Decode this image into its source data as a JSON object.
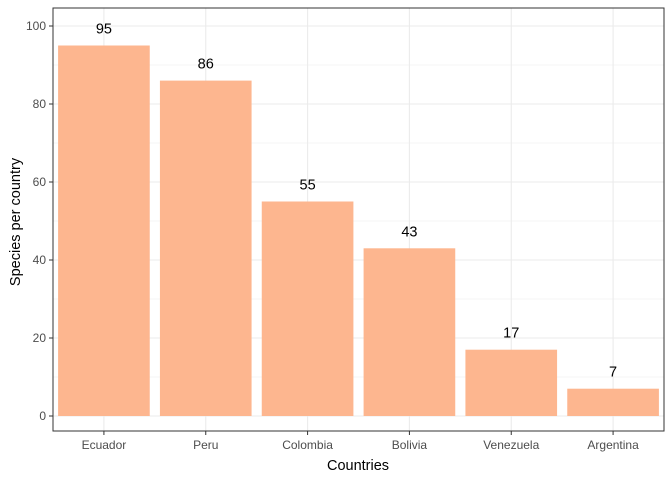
{
  "chart_data": {
    "type": "bar",
    "categories": [
      "Ecuador",
      "Peru",
      "Colombia",
      "Bolivia",
      "Venezuela",
      "Argentina"
    ],
    "values": [
      95,
      86,
      55,
      43,
      17,
      7
    ],
    "data_labels": [
      "95",
      "86",
      "55",
      "43",
      "17",
      "7"
    ],
    "xlabel": "Countries",
    "ylabel": "Species per country",
    "ylim": [
      0,
      105
    ],
    "yticks": [
      0,
      20,
      40,
      60,
      80,
      100
    ],
    "ytick_labels": [
      "0",
      "20",
      "40",
      "60",
      "80",
      "100"
    ],
    "grid": true,
    "legend": "none",
    "bar_color": "#FDB68F",
    "grid_color": "#EBEBEB",
    "panel_border_color": "#333333"
  }
}
